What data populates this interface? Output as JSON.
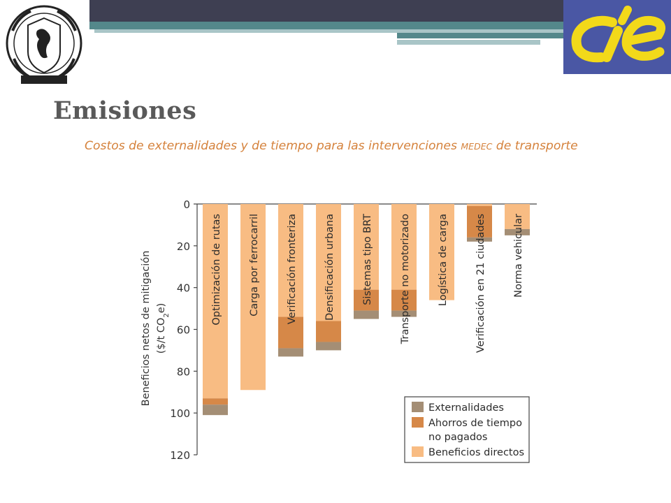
{
  "header": {
    "title": "Emisiones",
    "subtitle_pre": "Costos de externalidades y de tiempo para las intervenciones",
    "subtitle_small": "MEDEC",
    "subtitle_post": "de transporte",
    "colors": {
      "bar_dark": "#3e3f52",
      "teal": "#54888b",
      "cie_bg": "#4a57a4",
      "cie_logo": "#f2d91a"
    }
  },
  "logos": {
    "left": "unam-seal",
    "right": "cie-logo"
  },
  "chart_data": {
    "type": "bar",
    "orientation": "vertical-downward",
    "stacked": true,
    "ylabel_line1": "Beneficios netos de mitigación",
    "ylabel_line2_pre": "($/t CO",
    "ylabel_line2_sub": "2",
    "ylabel_line2_post": "e)",
    "ylim": [
      0,
      120
    ],
    "yticks": [
      "0",
      "20",
      "40",
      "60",
      "80",
      "100",
      "120"
    ],
    "categories": [
      "Optimización de rutas",
      "Carga por ferrocarril",
      "Verificación fronteriza",
      "Densificación urbana",
      "Sistemas tipo BRT",
      "Transporte no motorizado",
      "Logística de carga",
      "Verificación en 21 ciudades",
      "Norma vehicular"
    ],
    "series": [
      {
        "name": "Beneficios directos",
        "color": "#f8bc83",
        "values": [
          93,
          89,
          54,
          56,
          41,
          41,
          46,
          1,
          12
        ]
      },
      {
        "name": "Ahorros de tiempo no pagados",
        "color": "#d68848",
        "values": [
          3,
          0,
          15,
          10,
          10,
          10,
          0,
          15,
          0
        ]
      },
      {
        "name": "Externalidades",
        "color": "#a48e75",
        "values": [
          5,
          0,
          4,
          4,
          4,
          3,
          0,
          2,
          3
        ]
      }
    ],
    "legend": {
      "position": "bottom-right",
      "items": [
        {
          "lines": [
            "Externalidades"
          ],
          "color": "#a48e75"
        },
        {
          "lines": [
            "Ahorros de tiempo",
            "no pagados"
          ],
          "color": "#d68848"
        },
        {
          "lines": [
            "Beneficios directos"
          ],
          "color": "#f8bc83"
        }
      ]
    }
  }
}
